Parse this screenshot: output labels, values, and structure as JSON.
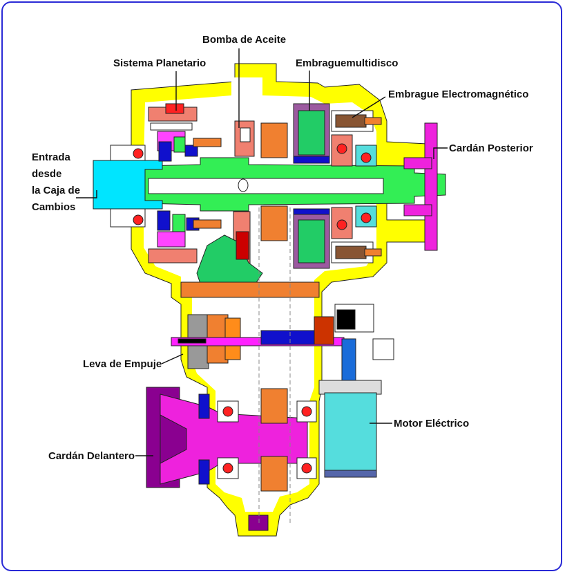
{
  "labels": {
    "bomba_aceite": "Bomba de Aceite",
    "sistema_planetario": "Sistema Planetario",
    "embrague_multidisco": "Embraguemultidisco",
    "embrague_electromagnetico": "Embrague Electromagnético",
    "cardan_posterior": "Cardán Posterior",
    "entrada": [
      "Entrada",
      "desde",
      "la Caja de",
      "Cambios"
    ],
    "leva_empuje": "Leva de Empuje",
    "motor_electrico": "Motor Eléctrico",
    "cardan_delantero": "Cardán Delantero"
  },
  "colors": {
    "frame_border": "#2a2ad6",
    "housing": "#ffff00",
    "input_shaft": "#00e5ff",
    "main_shaft": "#33ee55",
    "front_shaft": "#ff00ff",
    "bearing": "#ff2222",
    "orange_gear": "#f08030",
    "salmon": "#f08070",
    "planetary_blue": "#1010cc",
    "clutch_purple": "#9c5aa0",
    "motor_cyan": "#55dddd",
    "purple_yoke": "#8a0090",
    "green_pump": "#22cc66"
  }
}
